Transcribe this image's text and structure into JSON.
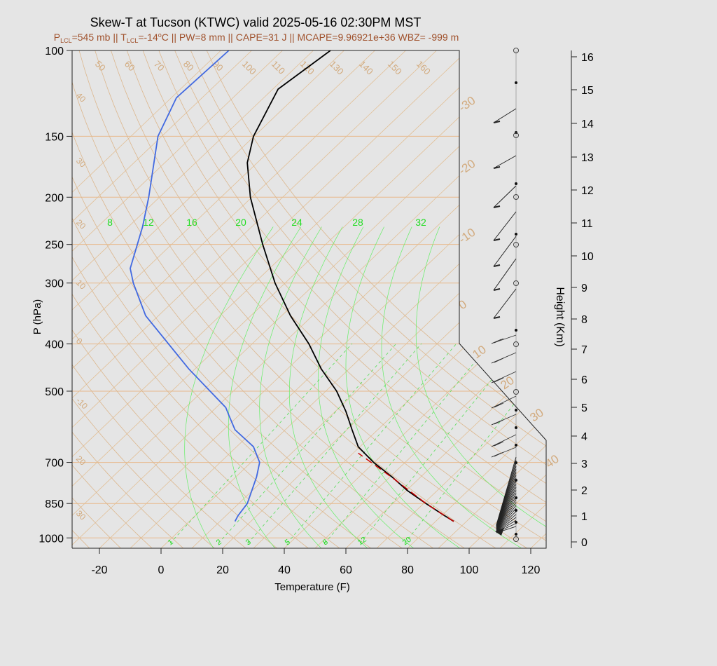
{
  "title": "Skew-T at Tucson (KTWC) valid 2025-05-16 02:30PM MST",
  "subtitle": {
    "p_lcl_prefix": "P",
    "p_lcl_sub": "LCL",
    "p_lcl_val": "=545 mb || T",
    "t_lcl_sub": "LCL",
    "t_lcl_val": "=-14",
    "deg": "o",
    "rest": "C || PW=8 mm || CAPE=31 J || MCAPE=9.96921e+36 WBZ= -999 m"
  },
  "chart_data": {
    "type": "line",
    "title": "Skew-T at Tucson (KTWC) valid 2025-05-16 02:30PM MST",
    "xlabel": "Temperature (F)",
    "ylabel": "P (hPa)",
    "y2label": "Height (Km)",
    "xlim": [
      -28,
      125
    ],
    "ylim_pressure_hpa": [
      1050,
      100
    ],
    "x_ticks": [
      -20,
      0,
      20,
      40,
      60,
      80,
      100,
      120
    ],
    "p_ticks": [
      100,
      150,
      200,
      250,
      300,
      400,
      500,
      700,
      850,
      1000
    ],
    "height_ticks_km": [
      0,
      1,
      2,
      3,
      4,
      5,
      6,
      7,
      8,
      9,
      10,
      11,
      12,
      13,
      14,
      15,
      16
    ],
    "isotherm_labels_c": [
      "-30",
      "-20",
      "-10",
      "0",
      "10",
      "20",
      "30",
      "40"
    ],
    "isotherm_labels_f_top": [
      "50",
      "60",
      "70",
      "80",
      "90",
      "100",
      "110",
      "120",
      "130",
      "140",
      "150",
      "160"
    ],
    "adiabat_labels_left": [
      "40",
      "30",
      "20",
      "10",
      "0",
      "-10",
      "20",
      "30"
    ],
    "mixing_ratio_labels": [
      "1",
      "2",
      "3",
      "5",
      "8",
      "12",
      "20"
    ],
    "theta_e_labels": [
      "8",
      "12",
      "16",
      "20",
      "24",
      "28",
      "32"
    ],
    "series": [
      {
        "name": "temperature",
        "color": "#000000",
        "points": [
          [
            95,
            925
          ],
          [
            92,
            900
          ],
          [
            86,
            850
          ],
          [
            80,
            800
          ],
          [
            75,
            750
          ],
          [
            69,
            700
          ],
          [
            64,
            650
          ],
          [
            62,
            600
          ],
          [
            60,
            550
          ],
          [
            57,
            500
          ],
          [
            52,
            450
          ],
          [
            48,
            400
          ],
          [
            42,
            350
          ],
          [
            37,
            300
          ],
          [
            33,
            250
          ],
          [
            29,
            200
          ],
          [
            28,
            170
          ],
          [
            30,
            150
          ],
          [
            38,
            120
          ],
          [
            55,
            100
          ]
        ]
      },
      {
        "name": "dewpoint",
        "color": "#4169e1",
        "points": [
          [
            24,
            925
          ],
          [
            25,
            900
          ],
          [
            28,
            850
          ],
          [
            31,
            750
          ],
          [
            32,
            700
          ],
          [
            30,
            650
          ],
          [
            24,
            600
          ],
          [
            22,
            560
          ],
          [
            21,
            540
          ],
          [
            9,
            450
          ],
          [
            -5,
            350
          ],
          [
            -9,
            300
          ],
          [
            -10,
            280
          ],
          [
            -6,
            230
          ],
          [
            -4,
            200
          ],
          [
            -1,
            150
          ],
          [
            5,
            125
          ],
          [
            22,
            100
          ]
        ]
      },
      {
        "name": "parcel",
        "color": "#cc0000",
        "points": [
          [
            95,
            925
          ],
          [
            86,
            850
          ],
          [
            76,
            760
          ],
          [
            64,
            670
          ]
        ]
      }
    ],
    "barb_panel_note": "wind barbs with height markers along right side"
  }
}
